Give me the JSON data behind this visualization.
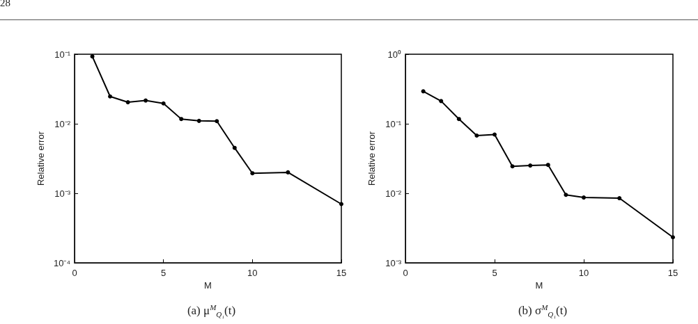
{
  "chart_data": [
    {
      "type": "line",
      "title": "(a) μ$^{M}$$_{Q₁}$(t)",
      "xlabel": "M",
      "ylabel": "Relative error",
      "annotations": [
        "28"
      ],
      "x": [
        1,
        2,
        3,
        4,
        5,
        6,
        7,
        8,
        9,
        10,
        12,
        15
      ],
      "series": [
        {
          "color": "#000000",
          "values": [
            0.093,
            0.0247,
            0.0204,
            0.0216,
            0.0196,
            0.0117,
            0.011,
            0.0109,
            0.0045,
            0.00194,
            0.002,
            0.0007
          ]
        }
      ],
      "xlim": [
        0,
        15
      ],
      "xticks": [
        0,
        5,
        10,
        15
      ],
      "ylim": [
        0.0001,
        0.1
      ],
      "yticks": [
        {
          "value": 0.0001,
          "label": "10⁻⁴"
        },
        {
          "value": 0.001,
          "label": "10⁻³"
        },
        {
          "value": 0.01,
          "label": "10⁻²"
        },
        {
          "value": 0.1,
          "label": "10⁻¹"
        }
      ],
      "log": "y",
      "marker": "circle",
      "line_style": "solid"
    },
    {
      "type": "line",
      "title": "(b) σ$^{M}$$_{Q₁}$(t)",
      "xlabel": "M",
      "ylabel": "Relative error",
      "x": [
        1,
        2,
        3,
        4,
        5,
        6,
        7,
        8,
        9,
        10,
        12,
        15
      ],
      "series": [
        {
          "color": "#000000",
          "values": [
            0.293,
            0.212,
            0.117,
            0.0676,
            0.07,
            0.0244,
            0.0251,
            0.0256,
            0.0095,
            0.0087,
            0.0085,
            0.00233
          ]
        }
      ],
      "xlim": [
        0,
        15
      ],
      "xticks": [
        0,
        5,
        10,
        15
      ],
      "ylim": [
        0.001,
        1
      ],
      "yticks": [
        {
          "value": 0.001,
          "label": "10⁻³"
        },
        {
          "value": 0.01,
          "label": "10⁻²"
        },
        {
          "value": 0.1,
          "label": "10⁻¹"
        },
        {
          "value": 1,
          "label": "10⁰"
        }
      ],
      "log": "y",
      "marker": "circle",
      "line_style": "solid"
    }
  ]
}
